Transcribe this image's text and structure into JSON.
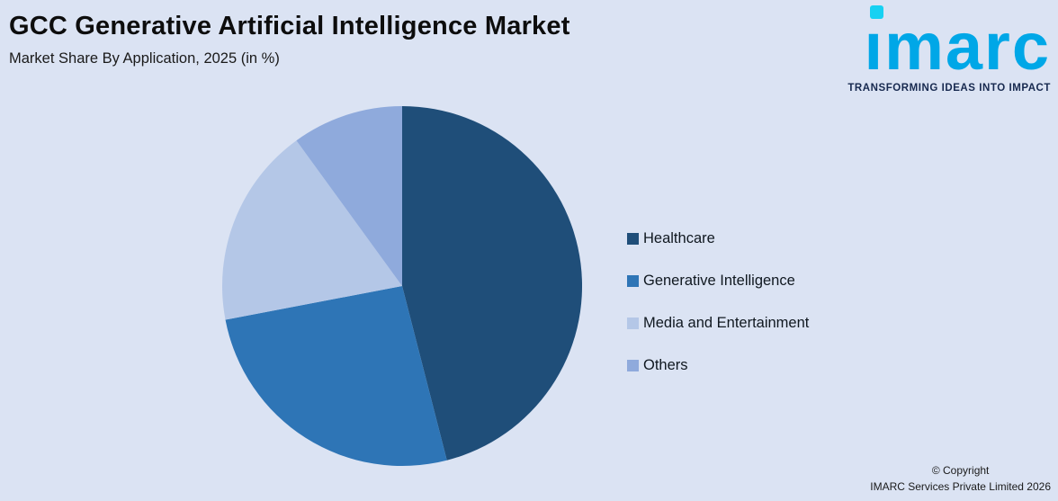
{
  "background_color": "#dbe3f3",
  "header": {
    "title": "GCC Generative Artificial Intelligence Market",
    "subtitle": "Market Share By Application, 2025 (in %)"
  },
  "logo": {
    "wordmark": "imarc",
    "tagline": "TRANSFORMING IDEAS INTO IMPACT",
    "wordmark_color": "#00a7e7",
    "dot_color": "#17d1f2",
    "tagline_color": "#17294f"
  },
  "chart_data": {
    "type": "pie",
    "title": "GCC Generative Artificial Intelligence Market",
    "subtitle": "Market Share By Application, 2025 (in %)",
    "legend_position": "right",
    "start_angle_deg": 0,
    "direction": "clockwise",
    "data_labels_shown": false,
    "segments": [
      {
        "label": "Healthcare",
        "value": 46,
        "color": "#1f4e79"
      },
      {
        "label": "Generative Intelligence",
        "value": 26,
        "color": "#2e75b6"
      },
      {
        "label": "Media and Entertainment",
        "value": 18,
        "color": "#b4c7e7"
      },
      {
        "label": "Others",
        "value": 10,
        "color": "#8faadc"
      }
    ]
  },
  "footer": {
    "copyright_line1": "© Copyright",
    "copyright_line2": "IMARC Services Private Limited 2026"
  }
}
